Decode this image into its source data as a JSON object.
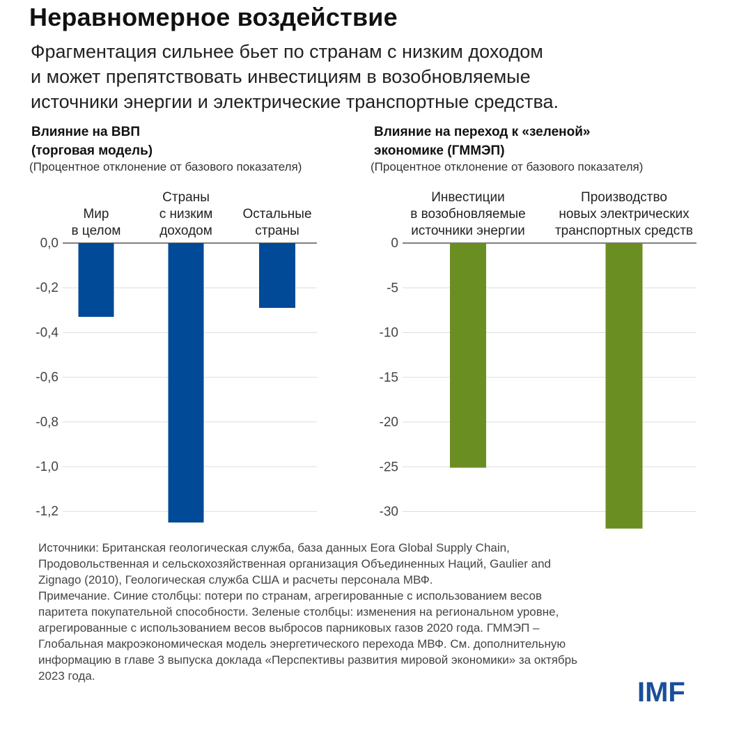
{
  "header": {
    "title": "Неравномерное воздействие",
    "subtitle_lines": [
      "Фрагментация сильнее бьет по странам с низким доходом",
      "и может препятствовать инвестициям в возобновляемые",
      "источники энергии и электрические транспортные средства."
    ]
  },
  "colors": {
    "gdp_bars": "#014a97",
    "green_bars": "#6b8e23",
    "grid": "#dddddd",
    "axis": "#555555"
  },
  "chart_data": [
    {
      "type": "bar",
      "title_lines": [
        "Влияние на ВВП",
        "(торговая модель)"
      ],
      "ylabel": "(Процентное отклонение от базового показателя)",
      "categories": [
        [
          "Мир",
          "в целом"
        ],
        [
          "Страны",
          "с низким",
          "доходом"
        ],
        [
          "Остальные",
          "страны"
        ]
      ],
      "values": [
        -0.33,
        -1.25,
        -0.29
      ],
      "ylim": [
        -1.3,
        0
      ],
      "yticks": [
        0,
        -0.2,
        -0.4,
        -0.6,
        -0.8,
        -1.0,
        -1.2
      ],
      "ytick_labels": [
        "0,0",
        "-0,2",
        "-0,4",
        "-0,6",
        "-0,8",
        "-1,0",
        "-1,2"
      ],
      "grid": true,
      "color": "#014a97"
    },
    {
      "type": "bar",
      "title_lines": [
        "Влияние на переход к «зеленой»",
        "экономике (ГММЭП)"
      ],
      "ylabel": "(Процентное отклонение от базового показателя)",
      "categories": [
        [
          "Инвестиции",
          "в возобновляемые",
          "источники энергии"
        ],
        [
          "Производство",
          "новых электрических",
          "транспортных средств"
        ]
      ],
      "values": [
        -25.1,
        -31.9
      ],
      "ylim": [
        -32,
        0
      ],
      "yticks": [
        0,
        -5,
        -10,
        -15,
        -20,
        -25,
        -30
      ],
      "ytick_labels": [
        "0",
        "-5",
        "-10",
        "-15",
        "-20",
        "-25",
        "-30"
      ],
      "grid": true,
      "color": "#6b8e23"
    }
  ],
  "footer": {
    "source_lines": [
      "Источники: Британская геологическая служба, база данных Eora Global Supply Chain,",
      "Продовольственная и сельскохозяйственная организация Объединенных Наций, Gaulier and",
      "Zignago (2010), Геологическая служба США и расчеты персонала МВФ.",
      "Примечание. Синие столбцы: потери по странам, агрегированные с использованием весов",
      "паритета покупательной способности. Зеленые столбцы: изменения на региональном уровне,",
      "агрегированные с использованием весов выбросов парниковых газов 2020 года. ГММЭП –",
      "Глобальная макроэкономическая модель энергетического перехода МВФ. См. дополнительную",
      "информацию в главе 3 выпуска доклада «Перспективы развития мировой экономики» за октябрь",
      "2023 года."
    ],
    "logo_text": "IMF"
  }
}
